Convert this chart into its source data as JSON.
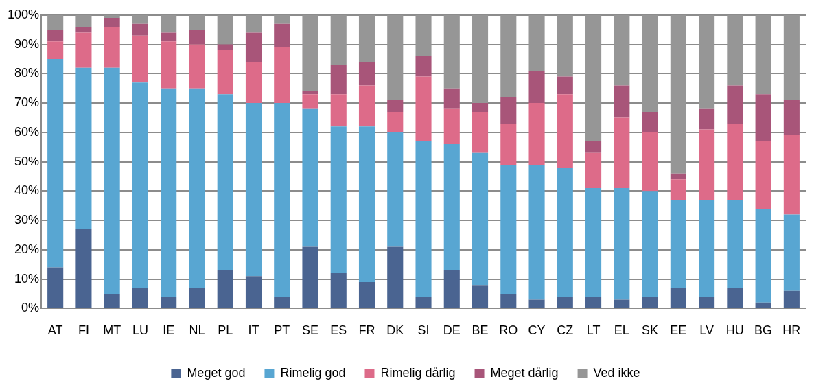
{
  "chart_data": {
    "type": "bar",
    "stacked": true,
    "categories": [
      "AT",
      "FI",
      "MT",
      "LU",
      "IE",
      "NL",
      "PL",
      "IT",
      "PT",
      "SE",
      "ES",
      "FR",
      "DK",
      "SI",
      "DE",
      "BE",
      "RO",
      "CY",
      "CZ",
      "LT",
      "EL",
      "SK",
      "EE",
      "LV",
      "HU",
      "BG",
      "HR"
    ],
    "series": [
      {
        "name": "Meget god",
        "color": "#4a6491",
        "values": [
          14,
          27,
          5,
          7,
          4,
          7,
          13,
          11,
          4,
          21,
          12,
          9,
          21,
          4,
          13,
          8,
          5,
          3,
          4,
          4,
          3,
          4,
          7,
          4,
          7,
          2,
          6
        ]
      },
      {
        "name": "Rimelig god",
        "color": "#58a6d2",
        "values": [
          71,
          55,
          77,
          70,
          71,
          68,
          60,
          59,
          66,
          47,
          50,
          53,
          39,
          53,
          43,
          45,
          44,
          46,
          44,
          37,
          38,
          36,
          30,
          33,
          30,
          32,
          26
        ]
      },
      {
        "name": "Rimelig dårlig",
        "color": "#dd6b89",
        "values": [
          6,
          12,
          14,
          16,
          16,
          15,
          15,
          14,
          19,
          5,
          11,
          14,
          7,
          22,
          12,
          14,
          14,
          21,
          25,
          12,
          24,
          20,
          7,
          24,
          26,
          23,
          27
        ]
      },
      {
        "name": "Meget dårlig",
        "color": "#a85579",
        "values": [
          4,
          2,
          3,
          4,
          3,
          5,
          2,
          10,
          8,
          1,
          10,
          8,
          4,
          7,
          7,
          3,
          9,
          11,
          6,
          4,
          11,
          7,
          2,
          7,
          13,
          16,
          12
        ]
      },
      {
        "name": "Ved ikke",
        "color": "#969696",
        "values": [
          5,
          4,
          1,
          3,
          6,
          5,
          10,
          6,
          3,
          26,
          17,
          16,
          29,
          14,
          25,
          30,
          28,
          19,
          21,
          43,
          24,
          33,
          54,
          32,
          24,
          27,
          29
        ]
      }
    ],
    "ylim": [
      0,
      100
    ],
    "yticks": [
      {
        "value": 0,
        "label": "0%"
      },
      {
        "value": 10,
        "label": "10%"
      },
      {
        "value": 20,
        "label": "20%"
      },
      {
        "value": 30,
        "label": "30%"
      },
      {
        "value": 40,
        "label": "40%"
      },
      {
        "value": 50,
        "label": "50%"
      },
      {
        "value": 60,
        "label": "60%"
      },
      {
        "value": 70,
        "label": "70%"
      },
      {
        "value": 80,
        "label": "80%"
      },
      {
        "value": 90,
        "label": "90%"
      },
      {
        "value": 100,
        "label": "100%"
      }
    ],
    "grid": "y",
    "legend": "bottom"
  }
}
